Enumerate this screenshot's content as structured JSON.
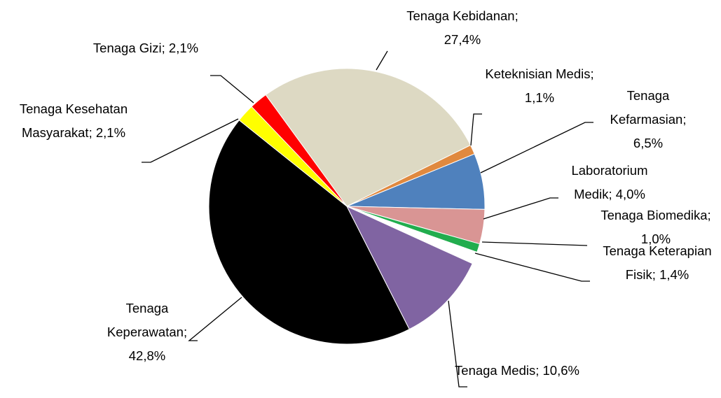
{
  "chart_data": {
    "type": "pie",
    "categories": [
      "Tenaga Kebidanan",
      "Keteknisian Medis",
      "Tenaga Kefarmasian",
      "Laboratorium Medik",
      "Tenaga Biomedika",
      "Tenaga Keterapian Fisik",
      "Tenaga Medis",
      "Tenaga Keperawatan",
      "Tenaga Kesehatan Masyarakat",
      "Tenaga Gizi"
    ],
    "values": [
      27.4,
      1.1,
      6.5,
      4.0,
      1.0,
      1.4,
      10.6,
      42.8,
      2.1,
      2.1
    ],
    "value_labels": [
      "27,4%",
      "1,1%",
      "6,5%",
      "4,0%",
      "1,0%",
      "1,4%",
      "10,6%",
      "42,8%",
      "2,1%",
      "2,1%"
    ],
    "label_separator": "; ",
    "colors": [
      "#ddd9c3",
      "#e0893f",
      "#4f81bd",
      "#d99594",
      "#22ad4e",
      "#ffffff",
      "#8064a2",
      "#000000",
      "#ffff00",
      "#ff0000"
    ],
    "start_angle": 324
  }
}
